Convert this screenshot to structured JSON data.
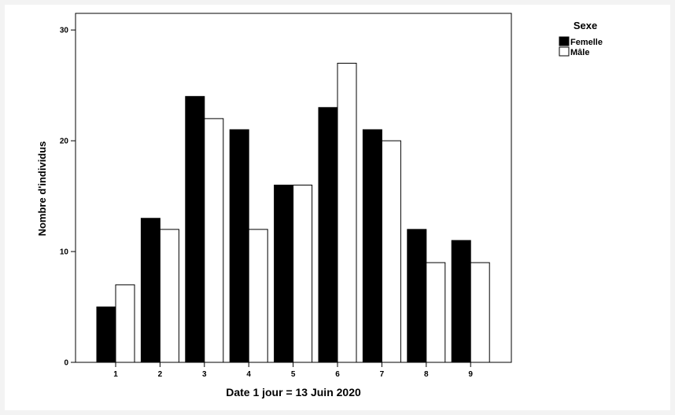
{
  "chart_data": {
    "type": "bar",
    "xlabel": "Date 1 jour = 13 Juin 2020",
    "ylabel": "Nombre d'individus",
    "categories": [
      "1",
      "2",
      "3",
      "4",
      "5",
      "6",
      "7",
      "8",
      "9"
    ],
    "ylim": [
      0,
      31.5
    ],
    "yticks": [
      0,
      10,
      20,
      30
    ],
    "series": [
      {
        "name": "Femelle",
        "values": [
          5,
          13,
          24,
          21,
          16,
          23,
          21,
          12,
          11
        ],
        "color": "#000000"
      },
      {
        "name": "Mâle",
        "values": [
          7,
          12,
          22,
          12,
          16,
          27,
          20,
          9,
          9
        ],
        "color": "#ffffff"
      }
    ],
    "legend": {
      "title": "Sexe",
      "position": "top-right"
    },
    "grid": false
  }
}
